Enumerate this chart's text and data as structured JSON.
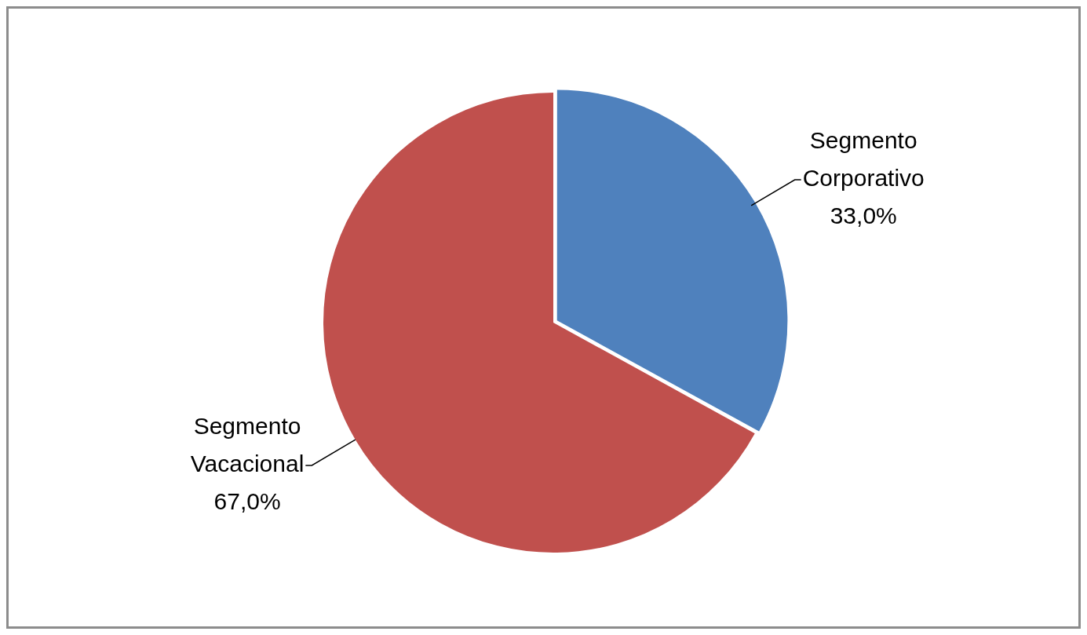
{
  "chart_data": {
    "type": "pie",
    "categories": [
      "Segmento Corporativo",
      "Segmento Vacacional"
    ],
    "values": [
      33.0,
      67.0
    ],
    "colors": [
      "#4f81bd",
      "#c0504d"
    ],
    "value_labels": [
      "33,0%",
      "67,0%"
    ],
    "legend": false
  }
}
